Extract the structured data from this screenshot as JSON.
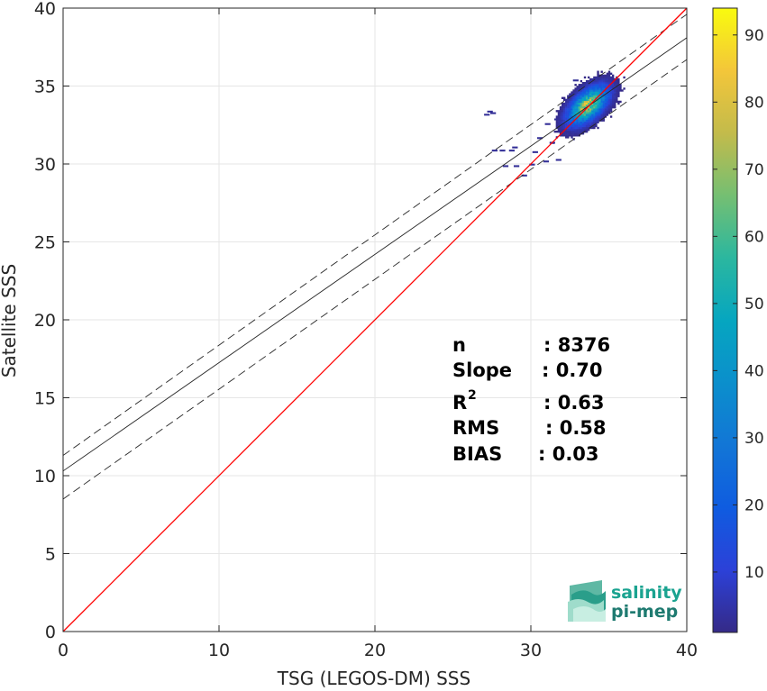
{
  "chart_data": {
    "type": "heatmap",
    "xlabel": "TSG (LEGOS-DM) SSS",
    "ylabel": "Satellite SSS",
    "xlim": [
      0,
      40
    ],
    "ylim": [
      0,
      40
    ],
    "xticks": [
      0,
      10,
      20,
      30,
      40
    ],
    "yticks": [
      0,
      5,
      10,
      15,
      20,
      25,
      30,
      35,
      40
    ],
    "grid": true,
    "colorbar": {
      "range": [
        1,
        94
      ],
      "ticks": [
        10,
        20,
        30,
        40,
        50,
        60,
        70,
        80,
        90
      ],
      "colormap": "parula"
    },
    "identity_line": {
      "x": [
        0,
        40
      ],
      "y": [
        0,
        40
      ],
      "color": "#ff0000"
    },
    "fit_line": {
      "x": [
        0,
        40
      ],
      "y": [
        10.3,
        38.1
      ],
      "color": "#262626"
    },
    "fit_band_upper": {
      "x": [
        0,
        40
      ],
      "y": [
        11.3,
        39.6
      ]
    },
    "fit_band_lower": {
      "x": [
        0,
        40
      ],
      "y": [
        8.5,
        36.7
      ]
    },
    "density": {
      "core": {
        "x_center": 33.6,
        "y_center": 33.7,
        "x_spread": 0.95,
        "y_spread": 0.75,
        "peak": 94
      },
      "scattered_points": [
        [
          27.2,
          33.3
        ],
        [
          27.4,
          33.2
        ],
        [
          27.0,
          33.1
        ],
        [
          27.5,
          30.8
        ],
        [
          28.0,
          30.8
        ],
        [
          28.6,
          30.8
        ],
        [
          28.2,
          29.8
        ],
        [
          28.9,
          29.8
        ],
        [
          29.4,
          29.2
        ],
        [
          30.1,
          30.7
        ],
        [
          30.8,
          30.1
        ],
        [
          31.2,
          31.3
        ],
        [
          30.4,
          31.6
        ],
        [
          31.5,
          32.8
        ],
        [
          30.9,
          32.5
        ],
        [
          32.7,
          35.3
        ],
        [
          32.2,
          32.0
        ],
        [
          31.6,
          30.2
        ],
        [
          29.9,
          29.9
        ],
        [
          28.8,
          31.0
        ]
      ]
    },
    "stats": {
      "n_label": "n",
      "n_value": ": 8376",
      "slope_label": "Slope",
      "slope_value": ": 0.70",
      "r2_label": "R",
      "r2_sup": "2",
      "r2_value": ": 0.63",
      "rms_label": "RMS",
      "rms_value": ": 0.58",
      "bias_label": "BIAS",
      "bias_value": ": 0.03"
    }
  },
  "logo": {
    "line1": "salinity",
    "line2": "pi-mep"
  },
  "colors": {
    "identity": "#ff0000",
    "fit": "#262626",
    "logo_text": "#1aa390",
    "logo_text_dark": "#1e7a70"
  }
}
